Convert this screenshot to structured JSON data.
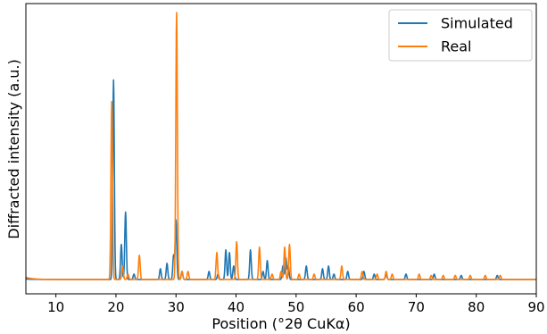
{
  "chart_data": {
    "type": "line",
    "xlabel": "Position (°2θ CuKα)",
    "ylabel": "Diffracted intensity (a.u.)",
    "xlim": [
      5,
      90
    ],
    "ylim": [
      0,
      1.0
    ],
    "x_ticks": [
      10,
      20,
      30,
      40,
      50,
      60,
      70,
      80,
      90
    ],
    "y_ticks": [],
    "grid": false,
    "legend_position": "top-right",
    "baseline": 0.01,
    "series": [
      {
        "name": "Simulated",
        "color": "#1f77b4",
        "baseline_start": 0.012,
        "peaks": [
          [
            19.6,
            0.74
          ],
          [
            20.9,
            0.13
          ],
          [
            21.6,
            0.25
          ],
          [
            23.0,
            0.02
          ],
          [
            27.4,
            0.04
          ],
          [
            28.5,
            0.06
          ],
          [
            29.6,
            0.09
          ],
          [
            30.0,
            0.22
          ],
          [
            31.0,
            0.03
          ],
          [
            35.5,
            0.03
          ],
          [
            37.0,
            0.02
          ],
          [
            38.3,
            0.11
          ],
          [
            38.9,
            0.1
          ],
          [
            39.6,
            0.05
          ],
          [
            42.4,
            0.11
          ],
          [
            44.5,
            0.03
          ],
          [
            45.2,
            0.07
          ],
          [
            47.8,
            0.05
          ],
          [
            48.3,
            0.08
          ],
          [
            48.7,
            0.05
          ],
          [
            51.7,
            0.05
          ],
          [
            54.4,
            0.04
          ],
          [
            55.4,
            0.05
          ],
          [
            56.3,
            0.02
          ],
          [
            58.6,
            0.03
          ],
          [
            61.3,
            0.03
          ],
          [
            63.0,
            0.02
          ],
          [
            65.0,
            0.02
          ],
          [
            68.3,
            0.02
          ],
          [
            73.0,
            0.02
          ],
          [
            77.5,
            0.015
          ],
          [
            83.5,
            0.015
          ]
        ]
      },
      {
        "name": "Real",
        "color": "#ff7f0e",
        "baseline_start": 0.018,
        "peaks": [
          [
            19.3,
            0.66
          ],
          [
            21.1,
            0.05
          ],
          [
            22.0,
            0.02
          ],
          [
            23.9,
            0.09
          ],
          [
            30.1,
            0.99
          ],
          [
            31.0,
            0.03
          ],
          [
            32.0,
            0.03
          ],
          [
            36.8,
            0.1
          ],
          [
            40.1,
            0.14
          ],
          [
            43.9,
            0.12
          ],
          [
            46.0,
            0.02
          ],
          [
            47.5,
            0.03
          ],
          [
            48.1,
            0.12
          ],
          [
            48.9,
            0.13
          ],
          [
            50.5,
            0.02
          ],
          [
            53.0,
            0.02
          ],
          [
            57.6,
            0.05
          ],
          [
            61.0,
            0.03
          ],
          [
            63.5,
            0.02
          ],
          [
            65.0,
            0.03
          ],
          [
            66.0,
            0.02
          ],
          [
            70.5,
            0.02
          ],
          [
            72.5,
            0.015
          ],
          [
            74.5,
            0.015
          ],
          [
            76.5,
            0.015
          ],
          [
            79.0,
            0.015
          ],
          [
            81.5,
            0.015
          ],
          [
            84.0,
            0.015
          ]
        ]
      }
    ]
  }
}
